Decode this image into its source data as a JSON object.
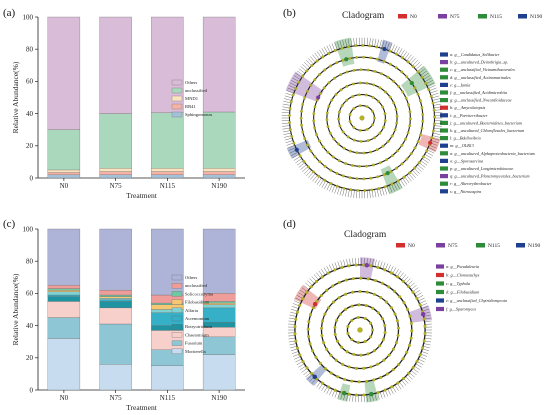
{
  "panels": {
    "a": {
      "label": "(a)"
    },
    "b": {
      "label": "(b)"
    },
    "c": {
      "label": "(c)"
    },
    "d": {
      "label": "(d)"
    }
  },
  "chart_data": [
    {
      "type": "bar",
      "stacked": true,
      "panel": "a",
      "title": "",
      "xlabel": "Treatment",
      "ylabel": "Relative Abundance(%)",
      "ylim": [
        0,
        100
      ],
      "yticks": [
        0,
        20,
        40,
        60,
        80,
        100
      ],
      "categories": [
        "N0",
        "N75",
        "N115",
        "N190"
      ],
      "legend_position": "inside-right",
      "series": [
        {
          "name": "Sphingomonas",
          "color": "#a4c1d8",
          "values": [
            2,
            2,
            2,
            2
          ]
        },
        {
          "name": "RB41",
          "color": "#f4b3a6",
          "values": [
            1.5,
            2,
            2,
            2
          ]
        },
        {
          "name": "MND1",
          "color": "#fbe3bf",
          "values": [
            1.5,
            2,
            2,
            2
          ]
        },
        {
          "name": "unclassified",
          "color": "#a9d8bd",
          "values": [
            25,
            34,
            34.5,
            35
          ]
        },
        {
          "name": "Others",
          "color": "#d9bcd8",
          "values": [
            70,
            60,
            59.5,
            59
          ]
        }
      ]
    },
    {
      "type": "bar",
      "stacked": true,
      "panel": "c",
      "title": "",
      "xlabel": "Treatment",
      "ylabel": "Relative Abundance(%)",
      "ylim": [
        0,
        100
      ],
      "yticks": [
        0,
        20,
        40,
        60,
        80,
        100
      ],
      "categories": [
        "N0",
        "N75",
        "N115",
        "N190"
      ],
      "legend_position": "inside-right",
      "series": [
        {
          "name": "Mortierella",
          "color": "#c7dcef",
          "values": [
            32,
            16,
            15,
            22
          ]
        },
        {
          "name": "Fusarium",
          "color": "#8fc6d5",
          "values": [
            13,
            25,
            10,
            11
          ]
        },
        {
          "name": "Chaetomium",
          "color": "#f8d0cb",
          "values": [
            10,
            10,
            12,
            6
          ]
        },
        {
          "name": "Botryotrichum",
          "color": "#1f93a1",
          "values": [
            3,
            4,
            3,
            3
          ]
        },
        {
          "name": "Acremonium",
          "color": "#35b0c6",
          "values": [
            1,
            1,
            8,
            9
          ]
        },
        {
          "name": "Alfaria",
          "color": "#7fd1d4",
          "values": [
            2,
            1,
            2,
            2
          ]
        },
        {
          "name": "Filobasidium",
          "color": "#f7c873",
          "values": [
            1,
            1,
            3,
            1
          ]
        },
        {
          "name": "Solicoccozyma",
          "color": "#71c7a2",
          "values": [
            1,
            1,
            1,
            1
          ]
        },
        {
          "name": "unclassified",
          "color": "#ef9d9a",
          "values": [
            2,
            3,
            5,
            5
          ]
        },
        {
          "name": "Others",
          "color": "#adb4d8",
          "values": [
            35,
            38,
            41,
            40
          ]
        }
      ]
    }
  ],
  "cladograms": {
    "b": {
      "title": "Cladogram",
      "groups": [
        {
          "name": "N0",
          "color": "#d32f2f"
        },
        {
          "name": "N75",
          "color": "#7b3fa0"
        },
        {
          "name": "N115",
          "color": "#2e8b3a"
        },
        {
          "name": "N190",
          "color": "#1f3f8f"
        }
      ],
      "key": [
        {
          "text": "a: g__Candidatus_Solibacter",
          "color": "#1f3f8f"
        },
        {
          "text": "b: g__uncultured_Deinobrigia_sp.",
          "color": "#7b3fa0"
        },
        {
          "text": "c: g__unclassified_Vicinamibacterales",
          "color": "#2e8b3a"
        },
        {
          "text": "d: g__unclassified_Actinomarinales",
          "color": "#2e8b3a"
        },
        {
          "text": "e: g__Iamia",
          "color": "#1f3f8f"
        },
        {
          "text": "f: g__unclassified_Acidimicrobiia",
          "color": "#2e8b3a"
        },
        {
          "text": "g: g__unclassified_Nocardioidaceae",
          "color": "#2e8b3a"
        },
        {
          "text": "h: g__Amycolatopsis",
          "color": "#d32f2f"
        },
        {
          "text": "i: g__Parviterribacter",
          "color": "#1f3f8f"
        },
        {
          "text": "j: g__uncultured_Bacteroidetes_bacterium",
          "color": "#2e8b3a"
        },
        {
          "text": "k: g__uncultured_Chloroflexales_bacterium",
          "color": "#2e8b3a"
        },
        {
          "text": "l: g__Bdellovibrio",
          "color": "#2e8b3a"
        },
        {
          "text": "m: g__OLB13",
          "color": "#1f3f8f"
        },
        {
          "text": "n: g__uncultured_Alphaproteobacteria_bacterium",
          "color": "#2e8b3a"
        },
        {
          "text": "o: g__Sporosarcina",
          "color": "#1f3f8f"
        },
        {
          "text": "p: g__uncultured_Longimicrobiaceae",
          "color": "#2e8b3a"
        },
        {
          "text": "q: g__uncultured_Planctomycetales_bacterium",
          "color": "#7b3fa0"
        },
        {
          "text": "r: g__Altererythrobacter",
          "color": "#2e8b3a"
        },
        {
          "text": "s: g__Nitrosospira",
          "color": "#1f3f8f"
        }
      ]
    },
    "d": {
      "title": "Cladogram",
      "groups": [
        {
          "name": "N0",
          "color": "#d32f2f"
        },
        {
          "name": "N75",
          "color": "#7b3fa0"
        },
        {
          "name": "N115",
          "color": "#2e8b3a"
        },
        {
          "name": "N190",
          "color": "#1f3f8f"
        }
      ],
      "key": [
        {
          "text": "a: g__Pseudaleuria",
          "color": "#7b3fa0"
        },
        {
          "text": "b: g__Clonostachys",
          "color": "#d32f2f"
        },
        {
          "text": "c: g__Typhula",
          "color": "#2e8b3a"
        },
        {
          "text": "d: g__Filobasidium",
          "color": "#2e8b3a"
        },
        {
          "text": "e: g__unclassified_Chytridiomycota",
          "color": "#1f3f8f"
        },
        {
          "text": "f: g__Sparomyces",
          "color": "#7b3fa0"
        }
      ]
    }
  }
}
